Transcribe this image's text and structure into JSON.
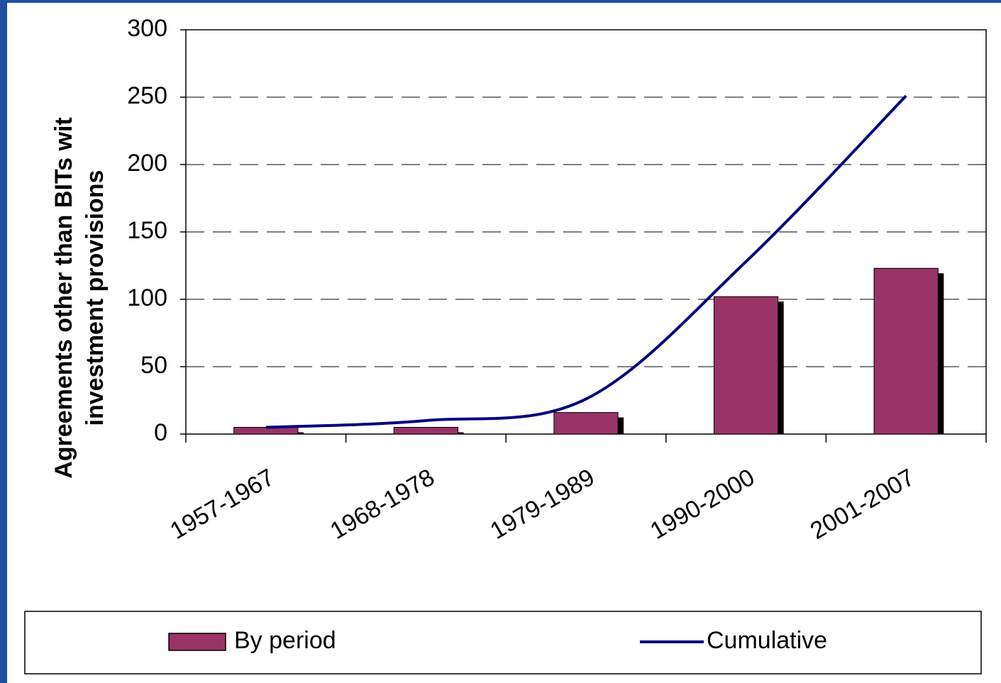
{
  "chart_data": {
    "type": "bar_line",
    "y_label_lines": [
      "Agreements other than BITs wit",
      "investment provisions"
    ],
    "categories": [
      "1957-1967",
      "1968-1978",
      "1979-1989",
      "1990-2000",
      "2001-2007"
    ],
    "series": [
      {
        "name": "By period",
        "type": "bar",
        "color": "#993366",
        "values": [
          5,
          5,
          16,
          102,
          123
        ]
      },
      {
        "name": "Cumulative",
        "type": "line",
        "color": "#000080",
        "values": [
          5,
          10,
          26,
          128,
          251
        ]
      }
    ],
    "ylim": [
      0,
      300
    ],
    "yticks": [
      0,
      50,
      100,
      150,
      200,
      250,
      300
    ],
    "grid": true
  }
}
